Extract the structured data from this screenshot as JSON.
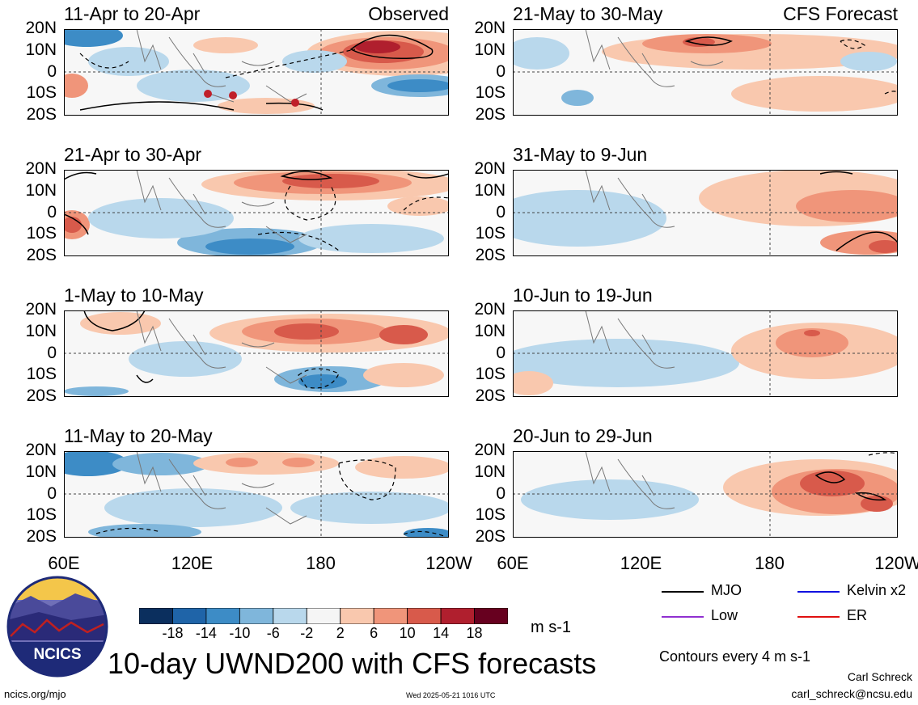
{
  "figure": {
    "main_title": "10-day UWND200 with CFS forecasts",
    "observed_label": "Observed",
    "forecast_label": "CFS Forecast",
    "units": "m s-1",
    "contour_note": "Contours every 4 m s-1",
    "author": "Carl Schreck",
    "email": "carl_schreck@ncsu.edu",
    "url": "ncics.org/mjo",
    "timestamp": "Wed 2025-05-21 1016 UTC",
    "logo_text": "NCICS"
  },
  "chart_data": {
    "type": "heatmap",
    "variable": "UWND200",
    "ylabels": [
      "20N",
      "10N",
      "0",
      "10S",
      "20S"
    ],
    "xlabels": [
      "60E",
      "120E",
      "180",
      "120W"
    ],
    "xlim": [
      "60E",
      "120W"
    ],
    "ylim": [
      "20S",
      "20N"
    ],
    "colorbar": {
      "ticks": [
        "-18",
        "-14",
        "-10",
        "-6",
        "-2",
        "2",
        "6",
        "10",
        "14",
        "18"
      ],
      "colors": [
        "#0b2f5e",
        "#1f64a8",
        "#3d8cc6",
        "#7fb6db",
        "#b9d8ec",
        "#f5f5f5",
        "#f9c8ae",
        "#f0957a",
        "#d85a4b",
        "#b01f2e",
        "#67001f"
      ]
    },
    "contour_legend": [
      {
        "label": "MJO",
        "color": "#000000"
      },
      {
        "label": "Kelvin x2",
        "color": "#1010e0"
      },
      {
        "label": "Low",
        "color": "#9030d0"
      },
      {
        "label": "ER",
        "color": "#e01010"
      }
    ],
    "panels": [
      {
        "title": "11-Apr to 20-Apr",
        "kind": "observed"
      },
      {
        "title": "21-Apr to 30-Apr",
        "kind": "observed"
      },
      {
        "title": "1-May to 10-May",
        "kind": "observed"
      },
      {
        "title": "11-May to 20-May",
        "kind": "observed"
      },
      {
        "title": "21-May to 30-May",
        "kind": "forecast"
      },
      {
        "title": "31-May to 9-Jun",
        "kind": "forecast"
      },
      {
        "title": "10-Jun to 19-Jun",
        "kind": "forecast"
      },
      {
        "title": "20-Jun to 29-Jun",
        "kind": "forecast"
      }
    ]
  }
}
